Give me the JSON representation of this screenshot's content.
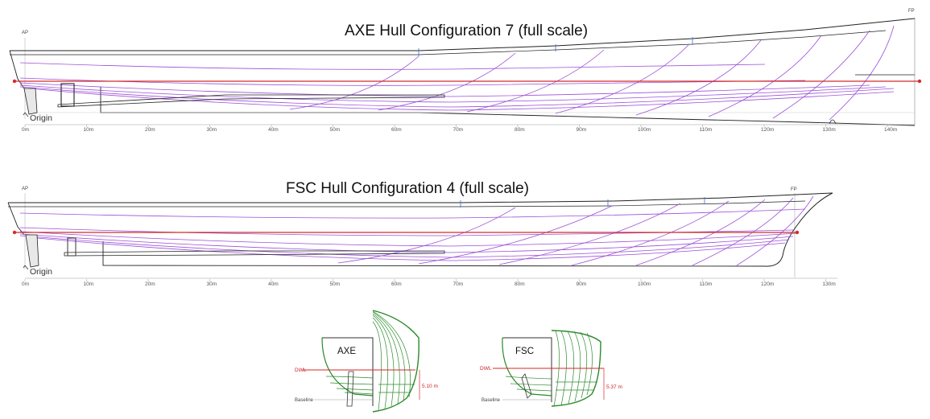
{
  "axe": {
    "title": "AXE Hull Configuration 7 (full scale)",
    "ap": "AP",
    "fp": "FP",
    "origin": "Origin",
    "ticks": [
      "0m",
      "10m",
      "20m",
      "30m",
      "40m",
      "50m",
      "60m",
      "70m",
      "80m",
      "90m",
      "100m",
      "110m",
      "120m",
      "130m",
      "140m"
    ]
  },
  "fsc": {
    "title": "FSC Hull Configuration 4 (full scale)",
    "ap": "AP",
    "fp": "FP",
    "origin": "Origin",
    "ticks": [
      "0m",
      "10m",
      "20m",
      "30m",
      "40m",
      "50m",
      "60m",
      "70m",
      "80m",
      "90m",
      "100m",
      "110m",
      "120m",
      "130m"
    ]
  },
  "sections": {
    "axe": {
      "label": "AXE",
      "dwl": "DWL",
      "baseline": "Baseline",
      "draft": "5.10 m"
    },
    "fsc": {
      "label": "FSC",
      "dwl": "DWL",
      "baseline": "Baseline",
      "draft": "5.37 m"
    }
  },
  "colors": {
    "waterline": "#d42a2a",
    "lines": "#9b4fd8",
    "body_plan": "#2a8a2a",
    "outline": "#222222"
  }
}
